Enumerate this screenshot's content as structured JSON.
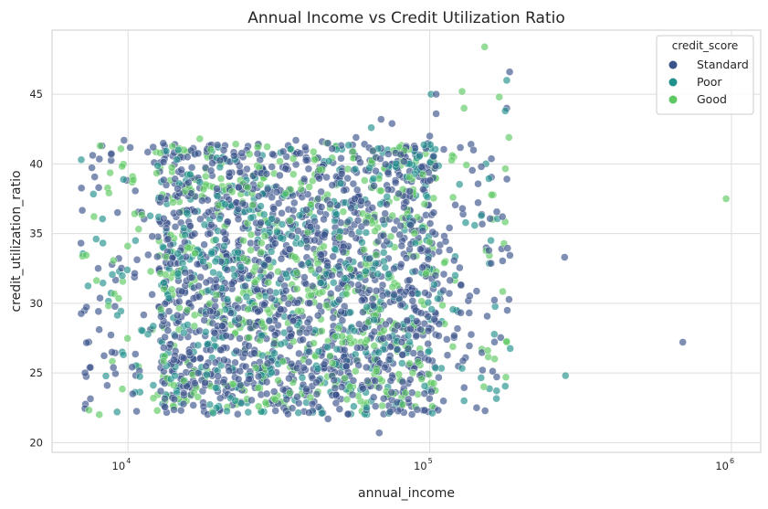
{
  "chart_data": {
    "type": "scatter",
    "title": "Annual Income vs Credit Utilization Ratio",
    "xlabel": "annual_income",
    "ylabel": "credit_utilization_ratio",
    "xscale": "log",
    "xlim": [
      5600,
      1250000
    ],
    "ylim": [
      19.3,
      49.6
    ],
    "grid": true,
    "x_ticks": [
      {
        "value": 10000,
        "base": "10",
        "exp": "4"
      },
      {
        "value": 100000,
        "base": "10",
        "exp": "5"
      },
      {
        "value": 1000000,
        "base": "10",
        "exp": "6"
      }
    ],
    "y_ticks": [
      20,
      25,
      30,
      35,
      40,
      45
    ],
    "legend": {
      "title": "credit_score",
      "placement": "top-right",
      "entries": [
        {
          "label": "Standard",
          "color": "#3b528b"
        },
        {
          "label": "Poor",
          "color": "#21918c"
        },
        {
          "label": "Good",
          "color": "#5ec962"
        }
      ]
    },
    "series": [
      {
        "name": "Standard",
        "color": "#3b528b",
        "points": [
          [
            184000,
            46.6
          ],
          [
            180000,
            44.0
          ],
          [
            105000,
            43.6
          ],
          [
            100000,
            42.0
          ],
          [
            75000,
            42.9
          ],
          [
            9700,
            41.7
          ],
          [
            8200,
            41.3
          ],
          [
            57000,
            41.9
          ],
          [
            44000,
            41.6
          ],
          [
            69000,
            43.2
          ],
          [
            280000,
            33.3
          ],
          [
            690000,
            27.2
          ],
          [
            68000,
            20.7
          ],
          [
            46000,
            21.7
          ],
          [
            143000,
            22.5
          ],
          [
            7200,
            25.0
          ],
          [
            7500,
            25.4
          ],
          [
            105000,
            45.0
          ],
          [
            36000,
            41.7
          ]
        ]
      },
      {
        "name": "Poor",
        "color": "#21918c",
        "points": [
          [
            180000,
            46.0
          ],
          [
            178000,
            43.8
          ],
          [
            7000,
            40.3
          ],
          [
            101000,
            45.0
          ],
          [
            282000,
            24.8
          ],
          [
            130000,
            23.0
          ],
          [
            9200,
            22.2
          ],
          [
            64000,
            42.6
          ]
        ]
      },
      {
        "name": "Good",
        "color": "#5ec962",
        "points": [
          [
            152000,
            48.4
          ],
          [
            170000,
            44.8
          ],
          [
            128000,
            45.2
          ],
          [
            960000,
            37.5
          ],
          [
            12500,
            22.3
          ],
          [
            19000,
            22.2
          ],
          [
            17300,
            41.8
          ],
          [
            102000,
            22.6
          ],
          [
            180000,
            27.2
          ],
          [
            164000,
            26.0
          ],
          [
            130000,
            44.0
          ],
          [
            14800,
            41.1
          ],
          [
            183000,
            41.9
          ]
        ]
      }
    ],
    "clouds": [
      {
        "series": "Standard",
        "x_range": [
          6900,
          185000
        ],
        "y_range": [
          22.0,
          41.5
        ],
        "count": 1500
      },
      {
        "series": "Poor",
        "x_range": [
          6900,
          185000
        ],
        "y_range": [
          22.0,
          41.5
        ],
        "count": 520
      },
      {
        "series": "Good",
        "x_range": [
          6900,
          185000
        ],
        "y_range": [
          22.0,
          41.5
        ],
        "count": 560
      }
    ]
  }
}
